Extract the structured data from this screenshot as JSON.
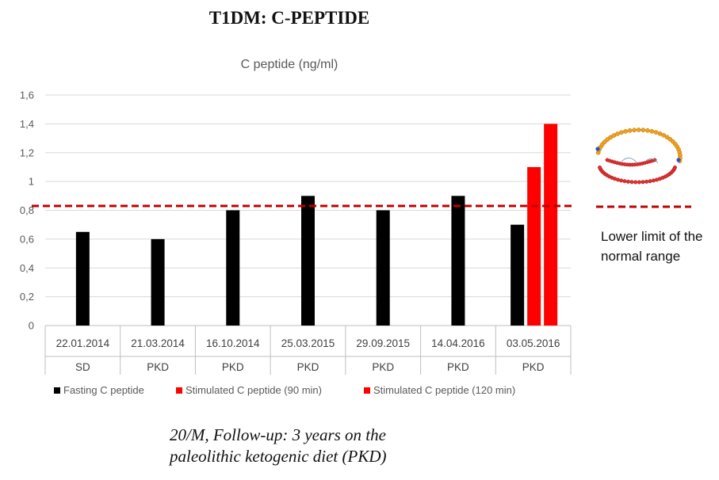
{
  "slide_title": "T1DM: C-PEPTIDE",
  "limit_label": "Lower limit of the normal range",
  "caption_line1": "20/M, Follow-up: 3 years on the",
  "caption_line2": "paleolithic ketogenic diet (PKD)",
  "colors": {
    "fasting": "#000000",
    "stim90": "#ff0000",
    "stim120": "#ff0000",
    "limit_line": "#c00000",
    "grid": "#d9d9d9"
  },
  "chart_data": {
    "type": "bar",
    "title": "C peptide  (ng/ml)",
    "ylim": [
      0,
      1.6
    ],
    "yticks": [
      "0",
      "0,2",
      "0,4",
      "0,6",
      "0,8",
      "1",
      "1,2",
      "1,4",
      "1,6"
    ],
    "grid": true,
    "legend_position": "bottom",
    "categories": [
      "22.01.2014",
      "21.03.2014",
      "16.10.2014",
      "25.03.2015",
      "29.09.2015",
      "14.04.2016",
      "03.05.2016"
    ],
    "category_groups": [
      "SD",
      "PKD",
      "PKD",
      "PKD",
      "PKD",
      "PKD",
      "PKD"
    ],
    "series": [
      {
        "name": "Fasting C peptide",
        "values": [
          0.65,
          0.6,
          0.8,
          0.9,
          0.8,
          0.9,
          0.7
        ]
      },
      {
        "name": "Stimulated C peptide (90 min)",
        "values": [
          null,
          null,
          null,
          null,
          null,
          null,
          1.1
        ]
      },
      {
        "name": "Stimulated C peptide (120 min)",
        "values": [
          null,
          null,
          null,
          null,
          null,
          null,
          1.4
        ]
      }
    ],
    "reference_line": {
      "value": 0.83
    }
  }
}
